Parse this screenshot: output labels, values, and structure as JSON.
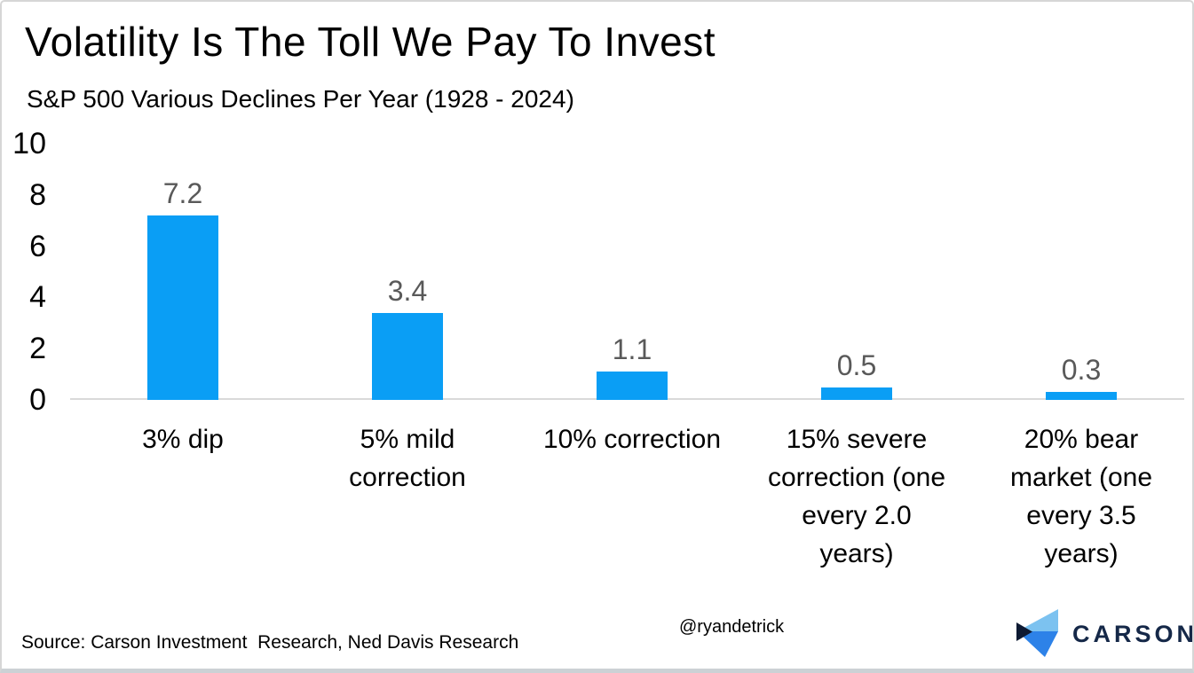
{
  "header": {
    "title": "Volatility Is The Toll We Pay To Invest",
    "subtitle": "S&P 500 Various Declines Per Year (1928 - 2024)"
  },
  "chart_data": {
    "type": "bar",
    "title": "Volatility Is The Toll We Pay To Invest",
    "subtitle": "S&P 500 Various Declines Per Year (1928 - 2024)",
    "categories": [
      "3% dip",
      "5% mild correction",
      "10% correction",
      "15% severe correction (one every 2.0 years)",
      "20% bear market (one every 3.5 years)"
    ],
    "category_lines": [
      [
        "3% dip"
      ],
      [
        "5% mild",
        "correction"
      ],
      [
        "10% correction"
      ],
      [
        "15% severe",
        "correction (one",
        "every 2.0",
        "years)"
      ],
      [
        "20% bear",
        "market (one",
        "every 3.5",
        "years)"
      ]
    ],
    "values": [
      7.2,
      3.4,
      1.1,
      0.5,
      0.3
    ],
    "value_labels": [
      "7.2",
      "3.4",
      "1.1",
      "0.5",
      "0.3"
    ],
    "y_ticks": [
      0,
      2,
      4,
      6,
      8,
      10
    ],
    "ylim": [
      0,
      10
    ],
    "xlabel": "",
    "ylabel": "",
    "grid": false,
    "legend": null,
    "bar_color": "#0a9ef5",
    "value_label_color": "#595959",
    "axis_line_color": "#d9d9d9"
  },
  "footer": {
    "source": "Source: Carson Investment  Research, Ned Davis Research",
    "handle": "@ryandetrick",
    "brand": "CARSON"
  },
  "logo": {
    "name": "carson-logo",
    "colors": {
      "light_blue": "#7cc2f0",
      "mid_blue": "#2d82e8",
      "navy_notch": "#0e1a33",
      "text_navy": "#152848"
    }
  }
}
